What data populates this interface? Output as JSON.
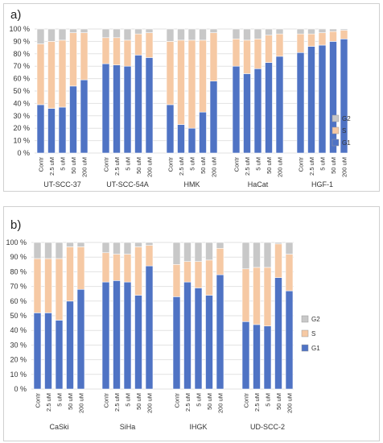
{
  "colors": {
    "G1": "#4f73c4",
    "S": "#f6c9a4",
    "G2": "#c8c8c8",
    "grid": "#e2e2e2",
    "edge": "#ffffff"
  },
  "chart_data": [
    {
      "panel": "a)",
      "type": "bar",
      "stacked": true,
      "ylim": [
        0,
        100
      ],
      "yticks": [
        "0 %",
        "10 %",
        "20 %",
        "30 %",
        "40 %",
        "50 %",
        "60 %",
        "70 %",
        "80 %",
        "90 %",
        "100 %"
      ],
      "legend": {
        "placement": "right",
        "entries": [
          "G2",
          "S",
          "G1"
        ]
      },
      "groups": [
        {
          "name": "UT-SCC-37",
          "categories": [
            "Contr",
            "2.5 uM",
            "5 uM",
            "50 uM",
            "200 uM"
          ],
          "series": [
            {
              "name": "G1",
              "values": [
                39,
                36,
                37,
                54,
                59
              ]
            },
            {
              "name": "S",
              "values": [
                49,
                54,
                54,
                43,
                38
              ]
            },
            {
              "name": "G2",
              "values": [
                12,
                10,
                9,
                3,
                3
              ]
            }
          ]
        },
        {
          "name": "UT-SCC-54A",
          "categories": [
            "Contr",
            "2.5 uM",
            "5 uM",
            "50 uM",
            "200 uM"
          ],
          "series": [
            {
              "name": "G1",
              "values": [
                72,
                71,
                70,
                79,
                77
              ]
            },
            {
              "name": "S",
              "values": [
                21,
                22,
                21,
                17,
                20
              ]
            },
            {
              "name": "G2",
              "values": [
                7,
                7,
                9,
                4,
                3
              ]
            }
          ]
        },
        {
          "name": "HMK",
          "categories": [
            "Contr",
            "2.5 uM",
            "5 uM",
            "50 uM",
            "200 uM"
          ],
          "series": [
            {
              "name": "G1",
              "values": [
                39,
                23,
                20,
                33,
                58
              ]
            },
            {
              "name": "S",
              "values": [
                51,
                68,
                71,
                58,
                39
              ]
            },
            {
              "name": "G2",
              "values": [
                10,
                9,
                9,
                9,
                3
              ]
            }
          ]
        },
        {
          "name": "HaCat",
          "categories": [
            "Contr",
            "2.5 uM",
            "5 uM",
            "50 uM",
            "200 uM"
          ],
          "series": [
            {
              "name": "G1",
              "values": [
                70,
                64,
                68,
                73,
                78
              ]
            },
            {
              "name": "S",
              "values": [
                22,
                27,
                24,
                22,
                18
              ]
            },
            {
              "name": "G2",
              "values": [
                8,
                9,
                8,
                5,
                4
              ]
            }
          ]
        },
        {
          "name": "HGF-1",
          "categories": [
            "Contr",
            "2.5 uM",
            "5 uM",
            "50 uM",
            "200 uM"
          ],
          "series": [
            {
              "name": "G1",
              "values": [
                81,
                86,
                87,
                90,
                92
              ]
            },
            {
              "name": "S",
              "values": [
                15,
                10,
                10,
                8,
                7
              ]
            },
            {
              "name": "G2",
              "values": [
                4,
                4,
                3,
                2,
                1
              ]
            }
          ]
        }
      ]
    },
    {
      "panel": "b)",
      "type": "bar",
      "stacked": true,
      "ylim": [
        0,
        100
      ],
      "yticks": [
        "0 %",
        "10 %",
        "20 %",
        "30 %",
        "40 %",
        "50 %",
        "60 %",
        "70 %",
        "80 %",
        "90 %",
        "100 %"
      ],
      "legend": {
        "placement": "right",
        "entries": [
          "G2",
          "S",
          "G1"
        ]
      },
      "groups": [
        {
          "name": "CaSki",
          "categories": [
            "Contr",
            "2.5 uM",
            "5 uM",
            "50 uM",
            "200 uM"
          ],
          "series": [
            {
              "name": "G1",
              "values": [
                52,
                52,
                47,
                60,
                68
              ]
            },
            {
              "name": "S",
              "values": [
                37,
                37,
                42,
                37,
                29
              ]
            },
            {
              "name": "G2",
              "values": [
                11,
                11,
                11,
                3,
                3
              ]
            }
          ]
        },
        {
          "name": "SiHa",
          "categories": [
            "Contr",
            "2.5 uM",
            "5 uM",
            "50 uM",
            "200 uM"
          ],
          "series": [
            {
              "name": "G1",
              "values": [
                73,
                74,
                73,
                64,
                84
              ]
            },
            {
              "name": "S",
              "values": [
                20,
                18,
                19,
                33,
                14
              ]
            },
            {
              "name": "G2",
              "values": [
                7,
                8,
                8,
                3,
                2
              ]
            }
          ]
        },
        {
          "name": "IHGK",
          "categories": [
            "Contr",
            "2.5 uM",
            "5 uM",
            "50 uM",
            "200 uM"
          ],
          "series": [
            {
              "name": "G1",
              "values": [
                63,
                73,
                69,
                64,
                78
              ]
            },
            {
              "name": "S",
              "values": [
                22,
                14,
                18,
                24,
                18
              ]
            },
            {
              "name": "G2",
              "values": [
                15,
                13,
                13,
                12,
                4
              ]
            }
          ]
        },
        {
          "name": "UD-SCC-2",
          "categories": [
            "Contr",
            "2.5 uM",
            "5 uM",
            "50 uM",
            "200 uM"
          ],
          "series": [
            {
              "name": "G1",
              "values": [
                46,
                44,
                43,
                76,
                67
              ]
            },
            {
              "name": "S",
              "values": [
                36,
                39,
                40,
                23,
                25
              ]
            },
            {
              "name": "G2",
              "values": [
                18,
                17,
                17,
                1,
                8
              ]
            }
          ]
        }
      ]
    }
  ]
}
